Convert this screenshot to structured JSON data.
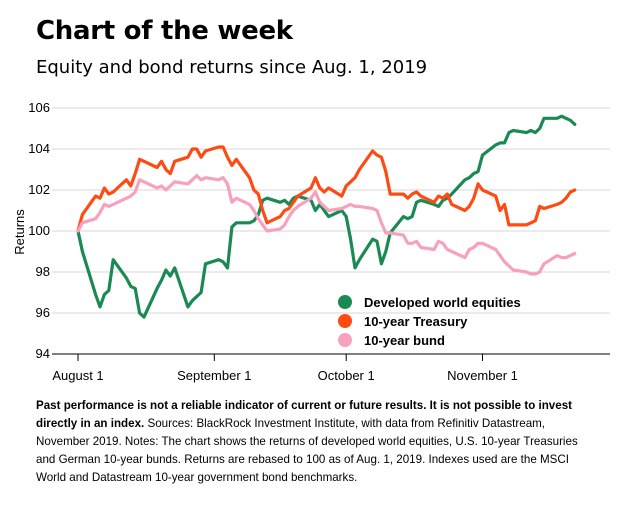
{
  "header": {
    "title": "Chart of the week",
    "subtitle": "Equity and bond returns since Aug. 1, 2019"
  },
  "footer": {
    "bold_text": "Past performance is not a reliable indicator of current or future results. It is not possible to invest directly in an index.",
    "text": " Sources: BlackRock Investment Institute, with data from Refinitiv Datastream, November 2019. Notes: The chart shows the returns of developed world equities, U.S. 10-year Treasuries and German 10-year bunds. Returns are rebased to 100 as of Aug. 1, 2019. Indexes used are the MSCI World and Datastream 10-year government bond benchmarks."
  },
  "colors": {
    "equities": "#1a8a52",
    "treasury": "#ff4a12",
    "bund": "#f7a1bf",
    "grid": "#d7d7d7",
    "axis": "#000000"
  },
  "chart_data": {
    "type": "line",
    "title": "",
    "xlabel": "",
    "ylabel": "Returns",
    "ylim": [
      94,
      106
    ],
    "yticks": [
      94,
      96,
      98,
      100,
      102,
      104,
      106
    ],
    "xlim": [
      "2019-08-01",
      "2019-11-30"
    ],
    "xticks": [
      {
        "label": "August 1",
        "date": "2019-08-01"
      },
      {
        "label": "September 1",
        "date": "2019-09-01"
      },
      {
        "label": "October 1",
        "date": "2019-10-01"
      },
      {
        "label": "November 1",
        "date": "2019-11-01"
      }
    ],
    "grid": true,
    "legend_position": "bottom-right",
    "series": [
      {
        "name": "Developed world equities",
        "color_key": "equities",
        "points": [
          [
            "2019-08-01",
            100.0
          ],
          [
            "2019-08-02",
            99.0
          ],
          [
            "2019-08-05",
            96.9
          ],
          [
            "2019-08-06",
            96.3
          ],
          [
            "2019-08-07",
            96.9
          ],
          [
            "2019-08-08",
            97.1
          ],
          [
            "2019-08-09",
            98.6
          ],
          [
            "2019-08-12",
            97.7
          ],
          [
            "2019-08-13",
            97.3
          ],
          [
            "2019-08-14",
            97.2
          ],
          [
            "2019-08-15",
            96.0
          ],
          [
            "2019-08-16",
            95.8
          ],
          [
            "2019-08-19",
            97.2
          ],
          [
            "2019-08-20",
            97.6
          ],
          [
            "2019-08-21",
            98.1
          ],
          [
            "2019-08-22",
            97.8
          ],
          [
            "2019-08-23",
            98.2
          ],
          [
            "2019-08-26",
            96.3
          ],
          [
            "2019-08-27",
            96.6
          ],
          [
            "2019-08-28",
            96.8
          ],
          [
            "2019-08-29",
            97.0
          ],
          [
            "2019-08-30",
            98.4
          ],
          [
            "2019-09-02",
            98.6
          ],
          [
            "2019-09-03",
            98.5
          ],
          [
            "2019-09-04",
            98.2
          ],
          [
            "2019-09-05",
            100.2
          ],
          [
            "2019-09-06",
            100.4
          ],
          [
            "2019-09-09",
            100.4
          ],
          [
            "2019-09-10",
            100.5
          ],
          [
            "2019-09-11",
            100.8
          ],
          [
            "2019-09-12",
            101.5
          ],
          [
            "2019-09-13",
            101.6
          ],
          [
            "2019-09-16",
            101.4
          ],
          [
            "2019-09-17",
            101.5
          ],
          [
            "2019-09-18",
            101.3
          ],
          [
            "2019-09-19",
            101.6
          ],
          [
            "2019-09-20",
            101.7
          ],
          [
            "2019-09-23",
            101.5
          ],
          [
            "2019-09-24",
            101.0
          ],
          [
            "2019-09-25",
            101.3
          ],
          [
            "2019-09-26",
            101.0
          ],
          [
            "2019-09-27",
            100.7
          ],
          [
            "2019-09-30",
            101.0
          ],
          [
            "2019-10-01",
            100.7
          ],
          [
            "2019-10-02",
            99.6
          ],
          [
            "2019-10-03",
            98.2
          ],
          [
            "2019-10-04",
            98.6
          ],
          [
            "2019-10-07",
            99.6
          ],
          [
            "2019-10-08",
            99.5
          ],
          [
            "2019-10-09",
            98.4
          ],
          [
            "2019-10-10",
            99.0
          ],
          [
            "2019-10-11",
            99.9
          ],
          [
            "2019-10-14",
            100.7
          ],
          [
            "2019-10-15",
            100.6
          ],
          [
            "2019-10-16",
            100.7
          ],
          [
            "2019-10-17",
            101.4
          ],
          [
            "2019-10-18",
            101.5
          ],
          [
            "2019-10-21",
            101.3
          ],
          [
            "2019-10-22",
            101.2
          ],
          [
            "2019-10-23",
            101.5
          ],
          [
            "2019-10-24",
            101.6
          ],
          [
            "2019-10-25",
            101.8
          ],
          [
            "2019-10-28",
            102.5
          ],
          [
            "2019-10-29",
            102.6
          ],
          [
            "2019-10-30",
            102.8
          ],
          [
            "2019-10-31",
            102.9
          ],
          [
            "2019-11-01",
            103.7
          ],
          [
            "2019-11-04",
            104.2
          ],
          [
            "2019-11-05",
            104.3
          ],
          [
            "2019-11-06",
            104.3
          ],
          [
            "2019-11-07",
            104.8
          ],
          [
            "2019-11-08",
            104.9
          ],
          [
            "2019-11-11",
            104.8
          ],
          [
            "2019-11-12",
            104.9
          ],
          [
            "2019-11-13",
            104.8
          ],
          [
            "2019-11-14",
            105.0
          ],
          [
            "2019-11-15",
            105.5
          ],
          [
            "2019-11-18",
            105.5
          ],
          [
            "2019-11-19",
            105.6
          ],
          [
            "2019-11-20",
            105.5
          ],
          [
            "2019-11-21",
            105.4
          ],
          [
            "2019-11-22",
            105.2
          ]
        ]
      },
      {
        "name": "10-year Treasury",
        "color_key": "treasury",
        "points": [
          [
            "2019-08-01",
            100.0
          ],
          [
            "2019-08-02",
            100.8
          ],
          [
            "2019-08-05",
            101.7
          ],
          [
            "2019-08-06",
            101.6
          ],
          [
            "2019-08-07",
            102.1
          ],
          [
            "2019-08-08",
            101.8
          ],
          [
            "2019-08-09",
            101.9
          ],
          [
            "2019-08-12",
            102.5
          ],
          [
            "2019-08-13",
            102.2
          ],
          [
            "2019-08-14",
            102.8
          ],
          [
            "2019-08-15",
            103.5
          ],
          [
            "2019-08-16",
            103.4
          ],
          [
            "2019-08-19",
            103.1
          ],
          [
            "2019-08-20",
            103.4
          ],
          [
            "2019-08-21",
            103.0
          ],
          [
            "2019-08-22",
            102.8
          ],
          [
            "2019-08-23",
            103.4
          ],
          [
            "2019-08-26",
            103.6
          ],
          [
            "2019-08-27",
            104.0
          ],
          [
            "2019-08-28",
            104.0
          ],
          [
            "2019-08-29",
            103.6
          ],
          [
            "2019-08-30",
            103.9
          ],
          [
            "2019-09-02",
            104.1
          ],
          [
            "2019-09-03",
            104.1
          ],
          [
            "2019-09-04",
            103.6
          ],
          [
            "2019-09-05",
            103.2
          ],
          [
            "2019-09-06",
            103.5
          ],
          [
            "2019-09-09",
            102.6
          ],
          [
            "2019-09-10",
            102.0
          ],
          [
            "2019-09-11",
            101.8
          ],
          [
            "2019-09-12",
            101.0
          ],
          [
            "2019-09-13",
            100.4
          ],
          [
            "2019-09-16",
            100.7
          ],
          [
            "2019-09-17",
            101.0
          ],
          [
            "2019-09-18",
            101.1
          ],
          [
            "2019-09-19",
            101.4
          ],
          [
            "2019-09-20",
            101.7
          ],
          [
            "2019-09-23",
            102.1
          ],
          [
            "2019-09-24",
            102.6
          ],
          [
            "2019-09-25",
            102.1
          ],
          [
            "2019-09-26",
            101.9
          ],
          [
            "2019-09-27",
            102.1
          ],
          [
            "2019-09-30",
            101.7
          ],
          [
            "2019-10-01",
            102.2
          ],
          [
            "2019-10-02",
            102.4
          ],
          [
            "2019-10-03",
            102.6
          ],
          [
            "2019-10-04",
            103.0
          ],
          [
            "2019-10-07",
            103.9
          ],
          [
            "2019-10-08",
            103.7
          ],
          [
            "2019-10-09",
            103.6
          ],
          [
            "2019-10-10",
            102.9
          ],
          [
            "2019-10-11",
            101.8
          ],
          [
            "2019-10-14",
            101.8
          ],
          [
            "2019-10-15",
            101.6
          ],
          [
            "2019-10-16",
            101.8
          ],
          [
            "2019-10-17",
            101.9
          ],
          [
            "2019-10-18",
            101.7
          ],
          [
            "2019-10-21",
            101.4
          ],
          [
            "2019-10-22",
            101.7
          ],
          [
            "2019-10-23",
            101.6
          ],
          [
            "2019-10-24",
            101.8
          ],
          [
            "2019-10-25",
            101.3
          ],
          [
            "2019-10-28",
            101.0
          ],
          [
            "2019-10-29",
            101.2
          ],
          [
            "2019-10-30",
            101.6
          ],
          [
            "2019-10-31",
            102.3
          ],
          [
            "2019-11-01",
            102.0
          ],
          [
            "2019-11-04",
            101.7
          ],
          [
            "2019-11-05",
            101.0
          ],
          [
            "2019-11-06",
            101.3
          ],
          [
            "2019-11-07",
            100.3
          ],
          [
            "2019-11-08",
            100.3
          ],
          [
            "2019-11-11",
            100.3
          ],
          [
            "2019-11-12",
            100.4
          ],
          [
            "2019-11-13",
            100.5
          ],
          [
            "2019-11-14",
            101.2
          ],
          [
            "2019-11-15",
            101.1
          ],
          [
            "2019-11-18",
            101.3
          ],
          [
            "2019-11-19",
            101.4
          ],
          [
            "2019-11-20",
            101.6
          ],
          [
            "2019-11-21",
            101.9
          ],
          [
            "2019-11-22",
            102.0
          ]
        ]
      },
      {
        "name": "10-year bund",
        "color_key": "bund",
        "points": [
          [
            "2019-08-01",
            100.0
          ],
          [
            "2019-08-02",
            100.4
          ],
          [
            "2019-08-05",
            100.6
          ],
          [
            "2019-08-06",
            100.9
          ],
          [
            "2019-08-07",
            101.3
          ],
          [
            "2019-08-08",
            101.2
          ],
          [
            "2019-08-09",
            101.3
          ],
          [
            "2019-08-12",
            101.6
          ],
          [
            "2019-08-13",
            101.7
          ],
          [
            "2019-08-14",
            101.9
          ],
          [
            "2019-08-15",
            102.5
          ],
          [
            "2019-08-16",
            102.4
          ],
          [
            "2019-08-19",
            102.1
          ],
          [
            "2019-08-20",
            102.2
          ],
          [
            "2019-08-21",
            102.0
          ],
          [
            "2019-08-22",
            102.2
          ],
          [
            "2019-08-23",
            102.4
          ],
          [
            "2019-08-26",
            102.3
          ],
          [
            "2019-08-27",
            102.5
          ],
          [
            "2019-08-28",
            102.7
          ],
          [
            "2019-08-29",
            102.5
          ],
          [
            "2019-08-30",
            102.6
          ],
          [
            "2019-09-02",
            102.5
          ],
          [
            "2019-09-03",
            102.6
          ],
          [
            "2019-09-04",
            102.3
          ],
          [
            "2019-09-05",
            101.4
          ],
          [
            "2019-09-06",
            101.6
          ],
          [
            "2019-09-09",
            101.3
          ],
          [
            "2019-09-10",
            101.0
          ],
          [
            "2019-09-11",
            100.6
          ],
          [
            "2019-09-12",
            100.3
          ],
          [
            "2019-09-13",
            100.0
          ],
          [
            "2019-09-16",
            100.1
          ],
          [
            "2019-09-17",
            100.3
          ],
          [
            "2019-09-18",
            100.7
          ],
          [
            "2019-09-19",
            101.0
          ],
          [
            "2019-09-20",
            101.2
          ],
          [
            "2019-09-23",
            101.6
          ],
          [
            "2019-09-24",
            101.9
          ],
          [
            "2019-09-25",
            101.4
          ],
          [
            "2019-09-26",
            101.2
          ],
          [
            "2019-09-27",
            101.0
          ],
          [
            "2019-09-30",
            101.1
          ],
          [
            "2019-10-01",
            101.2
          ],
          [
            "2019-10-02",
            101.3
          ],
          [
            "2019-10-03",
            101.2
          ],
          [
            "2019-10-04",
            101.2
          ],
          [
            "2019-10-07",
            101.1
          ],
          [
            "2019-10-08",
            101.0
          ],
          [
            "2019-10-09",
            100.4
          ],
          [
            "2019-10-10",
            99.9
          ],
          [
            "2019-10-11",
            99.9
          ],
          [
            "2019-10-14",
            99.8
          ],
          [
            "2019-10-15",
            99.4
          ],
          [
            "2019-10-16",
            99.4
          ],
          [
            "2019-10-17",
            99.5
          ],
          [
            "2019-10-18",
            99.2
          ],
          [
            "2019-10-21",
            99.1
          ],
          [
            "2019-10-22",
            99.5
          ],
          [
            "2019-10-23",
            99.4
          ],
          [
            "2019-10-24",
            99.1
          ],
          [
            "2019-10-25",
            99.0
          ],
          [
            "2019-10-28",
            98.7
          ],
          [
            "2019-10-29",
            99.1
          ],
          [
            "2019-10-30",
            99.2
          ],
          [
            "2019-10-31",
            99.4
          ],
          [
            "2019-11-01",
            99.4
          ],
          [
            "2019-11-04",
            99.1
          ],
          [
            "2019-11-05",
            98.8
          ],
          [
            "2019-11-06",
            98.5
          ],
          [
            "2019-11-07",
            98.3
          ],
          [
            "2019-11-08",
            98.1
          ],
          [
            "2019-11-11",
            98.0
          ],
          [
            "2019-11-12",
            97.9
          ],
          [
            "2019-11-13",
            97.9
          ],
          [
            "2019-11-14",
            98.0
          ],
          [
            "2019-11-15",
            98.4
          ],
          [
            "2019-11-18",
            98.8
          ],
          [
            "2019-11-19",
            98.7
          ],
          [
            "2019-11-20",
            98.7
          ],
          [
            "2019-11-21",
            98.8
          ],
          [
            "2019-11-22",
            98.9
          ]
        ]
      }
    ]
  }
}
